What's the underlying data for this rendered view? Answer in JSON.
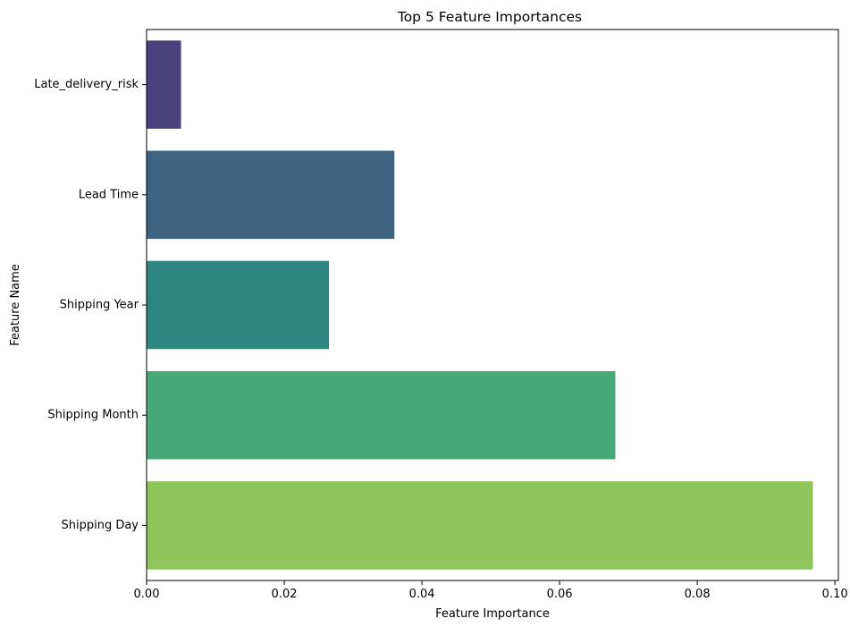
{
  "chart_data": {
    "type": "bar",
    "orientation": "horizontal",
    "title": "Top 5 Feature Importances",
    "xlabel": "Feature Importance",
    "ylabel": "Feature Name",
    "categories": [
      "Late_delivery_risk",
      "Lead Time",
      "Shipping Year",
      "Shipping Month",
      "Shipping Day"
    ],
    "values": [
      0.005,
      0.036,
      0.0265,
      0.0681,
      0.0968
    ],
    "colors": [
      "#48417a",
      "#3e6482",
      "#2e8680",
      "#47a878",
      "#8fc55a"
    ],
    "xlim": [
      0,
      0.1005
    ],
    "xticks": [
      0.0,
      0.02,
      0.04,
      0.06,
      0.08,
      0.1
    ],
    "xtick_labels": [
      "0.00",
      "0.02",
      "0.04",
      "0.06",
      "0.08",
      "0.10"
    ],
    "grid": false,
    "legend": "none"
  }
}
